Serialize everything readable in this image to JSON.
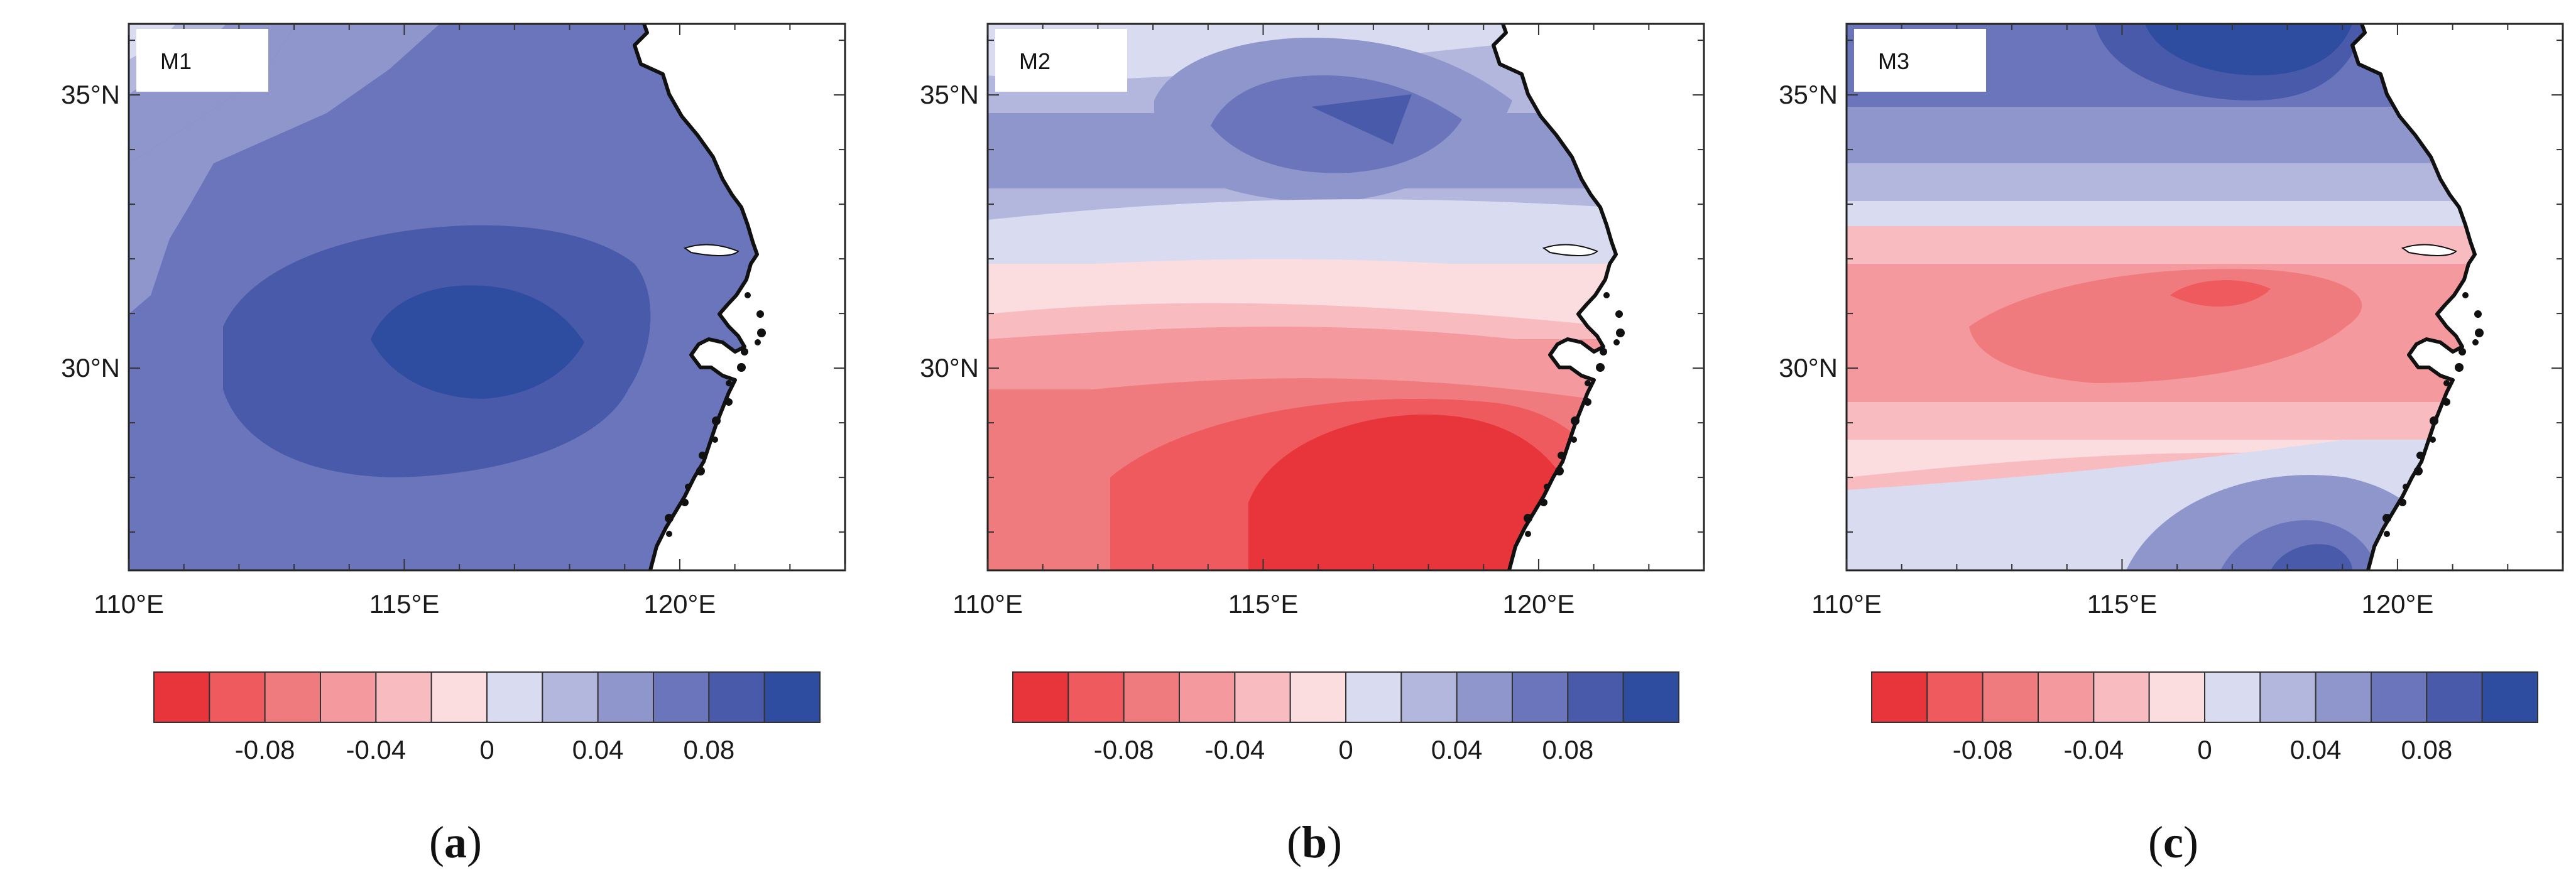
{
  "panels": [
    {
      "tag": "M1",
      "caption_letter": "a",
      "pattern": "m1"
    },
    {
      "tag": "M2",
      "caption_letter": "b",
      "pattern": "m2"
    },
    {
      "tag": "M3",
      "caption_letter": "c",
      "pattern": "m3"
    }
  ],
  "axes": {
    "lat_labels": [
      "35°N",
      "30°N"
    ],
    "lon_labels": [
      "110°E",
      "115°E",
      "120°E"
    ]
  },
  "colorbar": {
    "colors": [
      "#e8353b",
      "#ee5a5e",
      "#f07b7f",
      "#f49a9f",
      "#f8bcc0",
      "#fbdcdf",
      "#d9dbf0",
      "#b3b7de",
      "#8f96cc",
      "#6a75bb",
      "#4a5aaa",
      "#2f4da0"
    ],
    "tick_labels": [
      "-0.08",
      "-0.04",
      "0",
      "0.04",
      "0.08"
    ]
  },
  "caption_format": "({letter})"
}
